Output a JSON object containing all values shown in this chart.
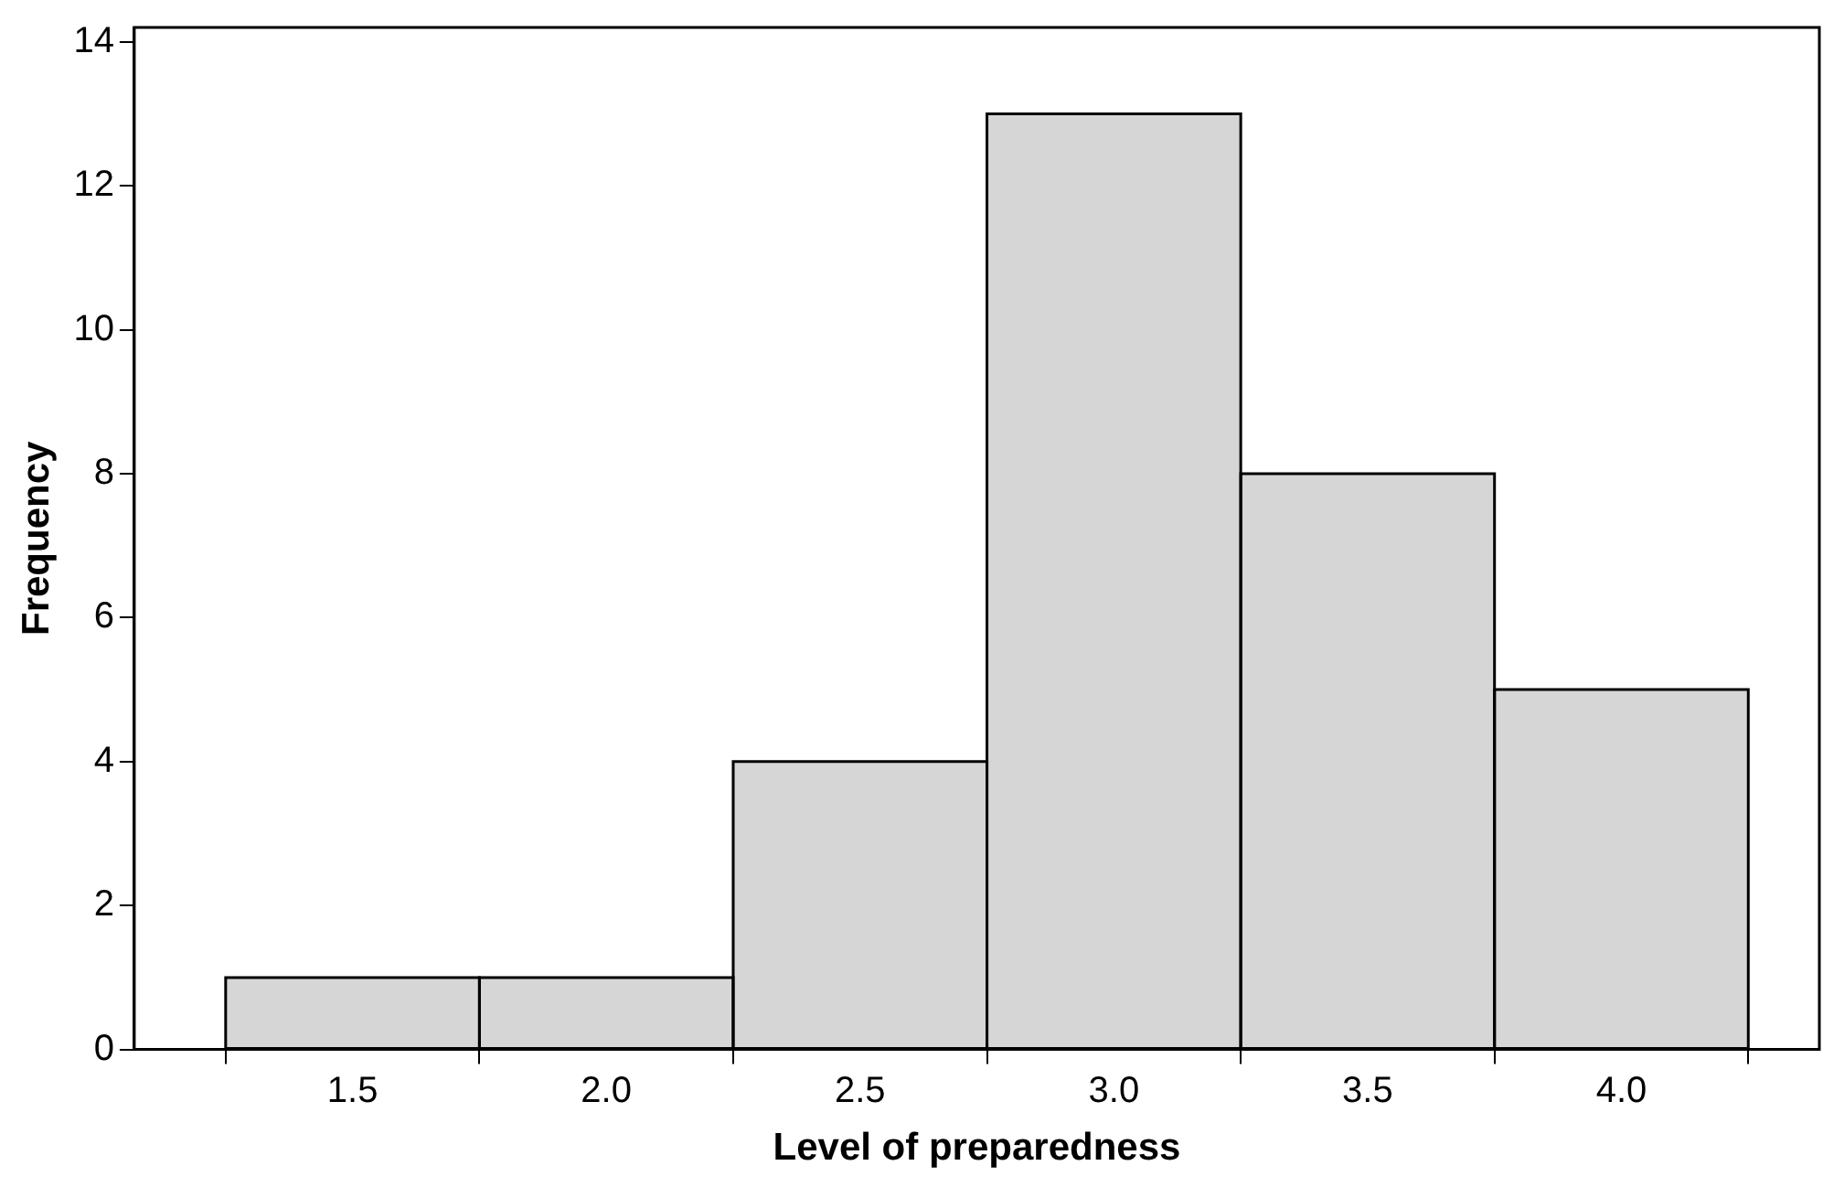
{
  "chart_data": {
    "type": "histogram",
    "xlabel": "Level of preparedness",
    "ylabel": "Frequency",
    "bins": [
      1.25,
      1.75,
      2.25,
      2.75,
      3.25,
      3.75,
      4.25
    ],
    "values": [
      1,
      1,
      4,
      13,
      8,
      5
    ],
    "color": "#d6d6d6",
    "xlim": [
      1.07,
      4.39
    ],
    "xticks": [
      1.5,
      {
        "value": 2,
        "label": "2.0"
      },
      2.5,
      {
        "value": 3,
        "label": "3.0"
      },
      3.5,
      {
        "value": 4,
        "label": "4.0"
      }
    ],
    "ylim": [
      0,
      14.2
    ],
    "yticks": [
      0,
      2,
      4,
      6,
      8,
      10,
      12,
      14
    ],
    "grid": false,
    "legend": false
  }
}
